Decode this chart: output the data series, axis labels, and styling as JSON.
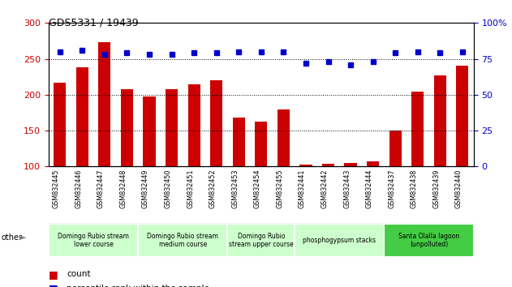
{
  "title": "GDS5331 / 19439",
  "samples": [
    "GSM832445",
    "GSM832446",
    "GSM832447",
    "GSM832448",
    "GSM832449",
    "GSM832450",
    "GSM832451",
    "GSM832452",
    "GSM832453",
    "GSM832454",
    "GSM832455",
    "GSM832441",
    "GSM832442",
    "GSM832443",
    "GSM832444",
    "GSM832437",
    "GSM832438",
    "GSM832439",
    "GSM832440"
  ],
  "counts": [
    217,
    238,
    273,
    208,
    197,
    208,
    215,
    220,
    168,
    162,
    179,
    103,
    104,
    105,
    107,
    150,
    204,
    227,
    240
  ],
  "percentiles": [
    80,
    81,
    78,
    79,
    78,
    78,
    79,
    79,
    80,
    80,
    80,
    72,
    73,
    71,
    73,
    79,
    80,
    79,
    80
  ],
  "bar_color": "#cc0000",
  "dot_color": "#0000cc",
  "ylim_left": [
    100,
    300
  ],
  "ylim_right": [
    0,
    100
  ],
  "yticks_left": [
    100,
    150,
    200,
    250,
    300
  ],
  "yticks_right": [
    0,
    25,
    50,
    75,
    100
  ],
  "groups": [
    {
      "label": "Domingo Rubio stream\nlower course",
      "start": 0,
      "end": 4,
      "color": "#ccffcc"
    },
    {
      "label": "Domingo Rubio stream\nmedium course",
      "start": 4,
      "end": 8,
      "color": "#ccffcc"
    },
    {
      "label": "Domingo Rubio\nstream upper course",
      "start": 8,
      "end": 11,
      "color": "#ccffcc"
    },
    {
      "label": "phosphogypsum stacks",
      "start": 11,
      "end": 15,
      "color": "#ccffcc"
    },
    {
      "label": "Santa Olalla lagoon\n(unpolluted)",
      "start": 15,
      "end": 19,
      "color": "#44cc44"
    }
  ],
  "bar_color_hex": "#cc0000",
  "dot_color_hex": "#0000cc",
  "tick_color_left": "#cc0000",
  "tick_color_right": "#0000cc",
  "sample_bg": "#cccccc",
  "sample_sep": "#ffffff"
}
